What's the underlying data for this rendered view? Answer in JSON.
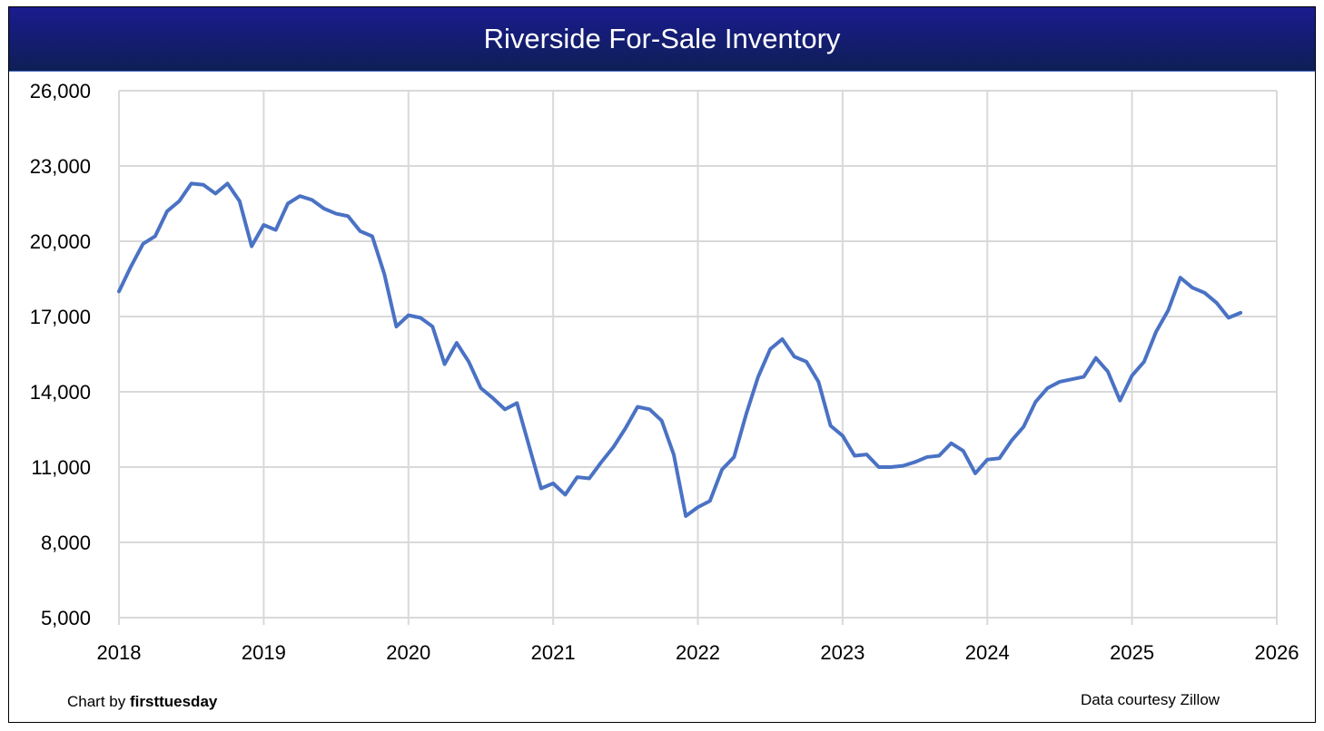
{
  "chart_data": {
    "type": "line",
    "title": "Riverside For-Sale Inventory",
    "xlabel": "",
    "ylabel": "",
    "xlim": [
      2018,
      2026
    ],
    "ylim": [
      5000,
      26000
    ],
    "x_ticks": [
      "2018",
      "2019",
      "2020",
      "2021",
      "2022",
      "2023",
      "2024",
      "2025",
      "2026"
    ],
    "y_ticks": [
      "5,000",
      "8,000",
      "11,000",
      "14,000",
      "17,000",
      "20,000",
      "23,000",
      "26,000"
    ],
    "y_tick_values": [
      5000,
      8000,
      11000,
      14000,
      17000,
      20000,
      23000,
      26000
    ],
    "grid": true,
    "line_color": "#4a72c4",
    "x_start": "2018-01",
    "series": [
      {
        "name": "For-sale inventory",
        "frequency": "monthly",
        "values": [
          18000,
          19000,
          19900,
          20200,
          21200,
          21600,
          22300,
          22250,
          21900,
          22300,
          21600,
          19800,
          20650,
          20450,
          21500,
          21800,
          21650,
          21300,
          21100,
          21000,
          20400,
          20200,
          18700,
          16600,
          17050,
          16950,
          16600,
          15100,
          15950,
          15200,
          14150,
          13750,
          13300,
          13550,
          11850,
          10150,
          10350,
          9900,
          10600,
          10550,
          11200,
          11800,
          12550,
          13400,
          13300,
          12850,
          11500,
          9050,
          9400,
          9650,
          10900,
          11400,
          13100,
          14600,
          15700,
          16100,
          15400,
          15200,
          14400,
          12650,
          12250,
          11450,
          11500,
          11000,
          11000,
          11050,
          11200,
          11400,
          11450,
          11950,
          11650,
          10750,
          11300,
          11350,
          12050,
          12600,
          13600,
          14150,
          14400,
          14500,
          14600,
          15350,
          14800,
          13650,
          14650,
          15200,
          16400,
          17250,
          18550,
          18150,
          17950,
          17550,
          16950,
          17150
        ]
      }
    ]
  },
  "footer": {
    "credit_prefix": "Chart by ",
    "credit_brand": "firsttuesday",
    "source": "Data courtesy Zillow"
  }
}
